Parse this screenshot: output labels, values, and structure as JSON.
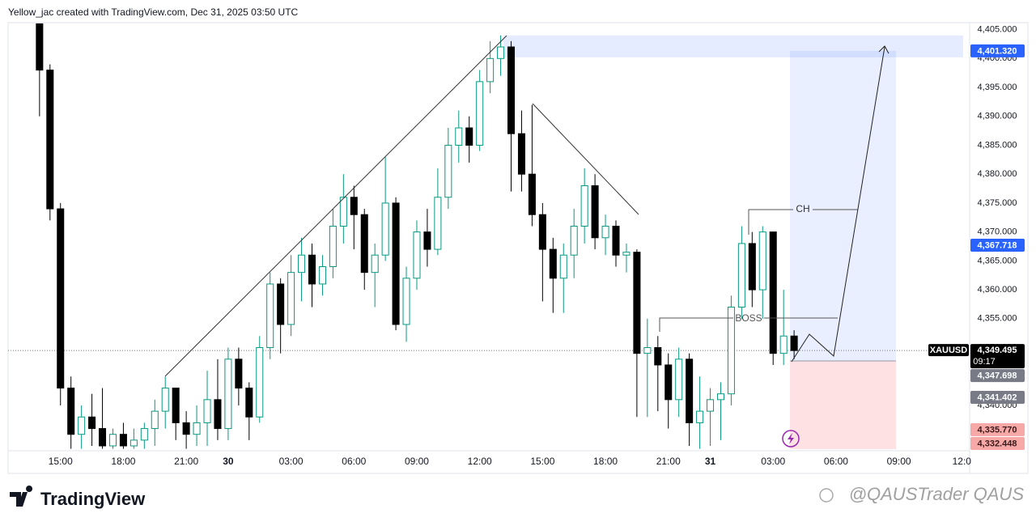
{
  "header": {
    "caption": "Yellow_jac created with TradingView.com, Dec 31, 2025 03:50 UTC"
  },
  "chart_data": {
    "type": "candlestick",
    "symbol": "XAUUSD",
    "categories": [
      null,
      null,
      "15:00",
      null,
      null,
      null,
      null,
      null,
      "18:00",
      null,
      null,
      null,
      null,
      null,
      "21:00",
      null,
      null,
      null,
      "30",
      null,
      null,
      null,
      null,
      null,
      "03:00",
      null,
      null,
      null,
      null,
      null,
      "06:00",
      null,
      null,
      null,
      null,
      null,
      "09:00",
      null,
      null,
      null,
      null,
      null,
      "12:00",
      null,
      null,
      null,
      null,
      null,
      "15:00",
      null,
      null,
      null,
      null,
      null,
      "18:00",
      null,
      null,
      null,
      null,
      null,
      "21:00",
      null,
      null,
      null,
      "31",
      null,
      null,
      null,
      null,
      null,
      "03:00",
      null,
      null,
      null,
      null,
      null,
      "06:00",
      null,
      null,
      null,
      null,
      null,
      "09:00",
      null,
      null,
      null,
      null,
      null,
      "12:0"
    ],
    "open": [
      4406,
      4398,
      4374,
      4343,
      4335,
      4338,
      4336,
      4333,
      4335,
      4333,
      4334,
      4336,
      4339,
      4343,
      4337,
      4335,
      4337,
      4341,
      4336,
      4348,
      4343,
      4338,
      4350,
      4361,
      4354,
      4363,
      4366,
      4361,
      4364,
      4371,
      4376,
      4373,
      4363,
      4366,
      4375,
      4354,
      4362,
      4370,
      4367,
      4376,
      4385,
      4388,
      4385,
      4396,
      4400,
      4402,
      4387,
      4380,
      4373,
      4367,
      4362,
      4366,
      4371,
      4378,
      4369,
      4371,
      4366,
      4366.5,
      4349,
      4350,
      4347,
      4341,
      4348,
      4337,
      4339,
      4341,
      4342,
      4357,
      4368,
      4360,
      4370,
      4349,
      4352,
      null,
      null,
      null,
      null,
      null,
      null,
      null,
      null,
      null,
      null,
      null,
      null,
      null,
      null,
      null,
      null
    ],
    "high": [
      4406,
      4399,
      4375,
      4345,
      4340,
      4342,
      4343,
      4336,
      4337,
      4336,
      4337,
      4341,
      4345,
      4343,
      4339,
      4340,
      4346,
      4348,
      4350,
      4350,
      4344,
      4352,
      4363,
      4362,
      4366,
      4369,
      4368,
      4366,
      4374,
      4380,
      4378,
      4374,
      4368,
      4383,
      4376,
      4364,
      4372,
      4374,
      4381,
      4388,
      4391,
      4390,
      4398,
      4403,
      4404,
      4403,
      4391,
      4392,
      4375,
      4369,
      4368,
      4374,
      4381,
      4380,
      4373,
      4372,
      4368,
      4367,
      4355,
      4352,
      4349,
      4350,
      4349,
      4345,
      4343,
      4344,
      4359,
      4371,
      4370,
      4371,
      4370,
      4360,
      4353,
      null,
      null,
      null,
      null,
      null,
      null,
      null,
      null,
      null,
      null,
      null,
      null,
      null,
      null,
      null,
      null
    ],
    "low": [
      4390,
      4372,
      4340,
      4332.5,
      4332.5,
      4333,
      4332.5,
      4332.5,
      4332.5,
      4332.5,
      4332.5,
      4333,
      4336,
      4334,
      4332.5,
      4333,
      4333,
      4334,
      4334,
      4340,
      4334,
      4337,
      4348,
      4349,
      4352,
      4358,
      4357,
      4359,
      4362,
      4368,
      4367,
      4360,
      4357,
      4365,
      4353,
      4351,
      4360,
      4364,
      4366,
      4374,
      4382,
      4382,
      4384,
      4394,
      4397,
      4377,
      4377,
      4371,
      4358,
      4356,
      4356,
      4362,
      4368,
      4367,
      4366,
      4364,
      4363,
      4338,
      4338,
      4339,
      4336,
      4338,
      4333,
      4332.5,
      4333,
      4334,
      4340,
      4355,
      4357,
      4355,
      4347,
      4347,
      4348,
      null,
      null,
      null,
      null,
      null,
      null,
      null,
      null,
      null,
      null,
      null,
      null,
      null,
      null,
      null,
      null
    ],
    "close": [
      4398,
      4374,
      4343,
      4335,
      4338,
      4336,
      4333,
      4335,
      4333,
      4334,
      4336,
      4339,
      4343,
      4337,
      4335,
      4337,
      4341,
      4336,
      4348,
      4343,
      4338,
      4350,
      4361,
      4354,
      4363,
      4366,
      4361,
      4364,
      4371,
      4376,
      4373,
      4363,
      4366,
      4375,
      4354,
      4362,
      4370,
      4367,
      4376,
      4385,
      4388,
      4385,
      4396,
      4400,
      4402,
      4387,
      4380,
      4373,
      4367,
      4362,
      4366,
      4371,
      4378,
      4369,
      4371,
      4366,
      4366.5,
      4349,
      4350,
      4347,
      4341,
      4348,
      4337,
      4339,
      4341,
      4342,
      4357,
      4368,
      4360,
      4370,
      4349,
      4352,
      4349.495,
      null,
      null,
      null,
      null,
      null,
      null,
      null,
      null,
      null,
      null,
      null,
      null,
      null,
      null,
      null,
      null
    ],
    "up_color": "#ffffff",
    "up_border": "#089981",
    "down_color": "#000000",
    "ylim": [
      4332.3,
      4406.2
    ],
    "yticks": [
      {
        "value": 4340,
        "label": "4,340.000"
      },
      {
        "value": 4345,
        "label": "4,345.000"
      },
      {
        "value": 4350,
        "label": "4,350.000"
      },
      {
        "value": 4355,
        "label": "4,355.000"
      },
      {
        "value": 4360,
        "label": "4,360.000"
      },
      {
        "value": 4365,
        "label": "4,365.000"
      },
      {
        "value": 4370,
        "label": "4,370.000"
      },
      {
        "value": 4375,
        "label": "4,375.000"
      },
      {
        "value": 4380,
        "label": "4,380.000"
      },
      {
        "value": 4385,
        "label": "4,385.000"
      },
      {
        "value": 4390,
        "label": "4,390.000"
      },
      {
        "value": 4395,
        "label": "4,395.000"
      },
      {
        "value": 4400,
        "label": "4,400.000"
      },
      {
        "value": 4405,
        "label": "4,405.000"
      }
    ],
    "grid": false,
    "price_labels": [
      {
        "value": 4401.32,
        "label": "4,401.320",
        "color": "#2962ff",
        "text_color": "#ffffff"
      },
      {
        "value": 4367.718,
        "label": "4,367.718",
        "color": "#2962ff",
        "text_color": "#ffffff"
      },
      {
        "value": 4347.698,
        "label": "4,347.698",
        "color": "#787b86",
        "text_color": "#ffffff"
      },
      {
        "value": 4341.402,
        "label": "4,341.402",
        "color": "#787b86",
        "text_color": "#ffffff"
      },
      {
        "value": 4335.77,
        "label": "4,335.770",
        "color": "#f7a9a8",
        "text_color": "#3a1a1a"
      },
      {
        "value": 4332.448,
        "label": "4,332.448",
        "color": "#f7a9a8",
        "text_color": "#3a1a1a"
      }
    ],
    "last_price": {
      "value": 4349.495,
      "label": "4,349.495"
    },
    "countdown": "09:17",
    "annotations": {
      "ch": "CH",
      "boss": "BOSS"
    }
  },
  "footer": {
    "brand": "TradingView",
    "watermark": "@QAUSTrader QAUS"
  }
}
